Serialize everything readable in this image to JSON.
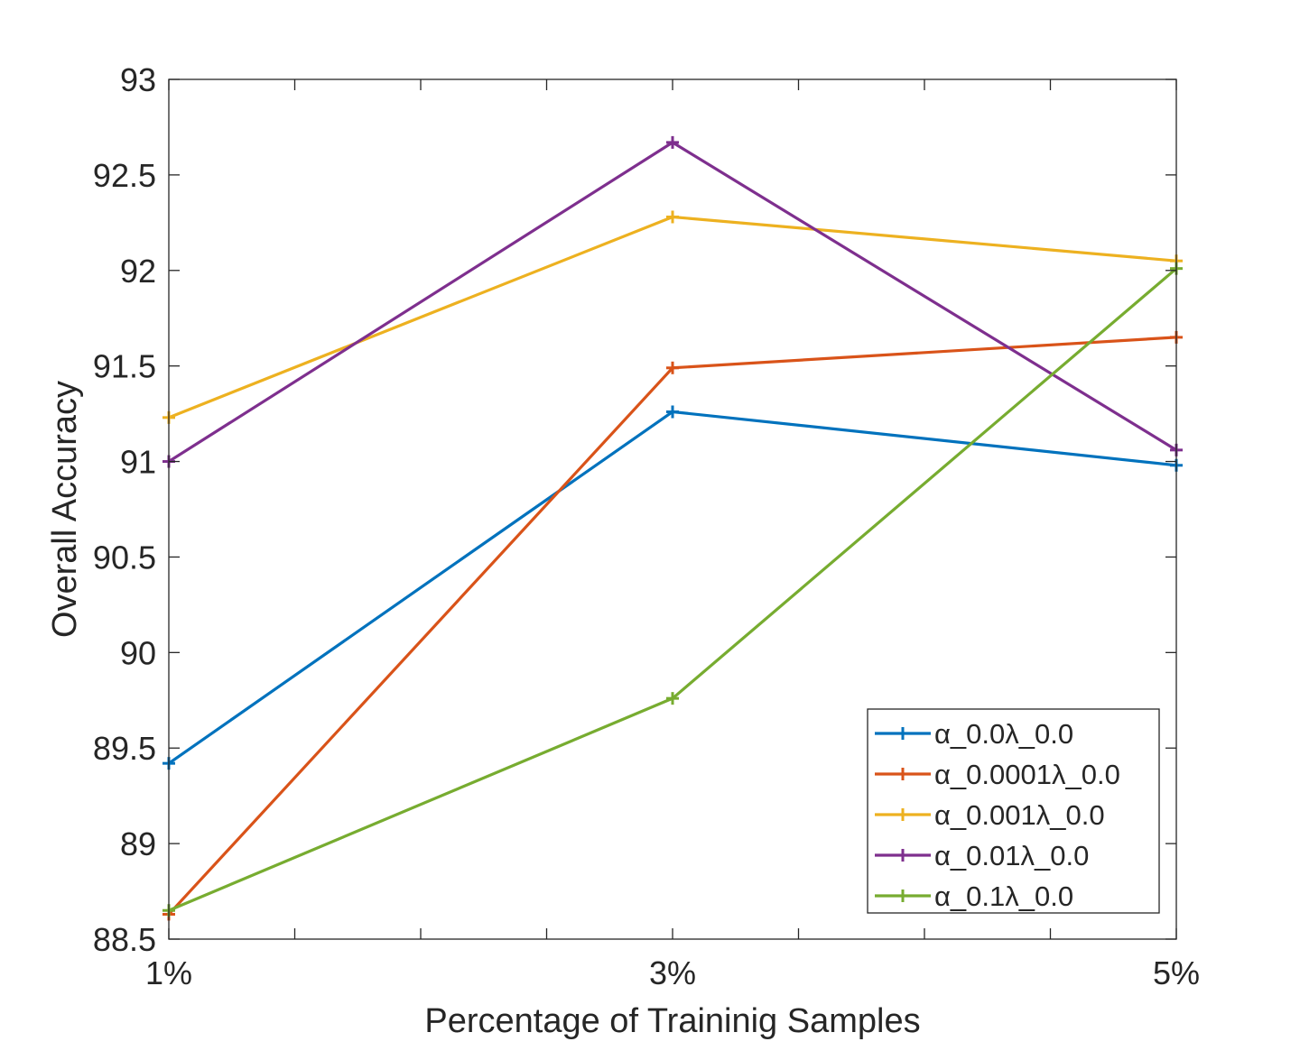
{
  "chart_data": {
    "type": "line",
    "title": "",
    "xlabel": "Percentage of Traininig Samples",
    "ylabel": "Overall Accuracy",
    "x": [
      1,
      3,
      5
    ],
    "xlim": [
      1,
      5
    ],
    "ylim": [
      88.5,
      93
    ],
    "xticks": [
      1,
      1.5,
      2,
      2.5,
      3,
      3.5,
      4,
      4.5,
      5
    ],
    "xtick_labels": [
      {
        "x": 1,
        "label": "1%"
      },
      {
        "x": 3,
        "label": "3%"
      },
      {
        "x": 5,
        "label": "5%"
      }
    ],
    "yticks": [
      88.5,
      89,
      89.5,
      90,
      90.5,
      91,
      91.5,
      92,
      92.5,
      93
    ],
    "ytick_labels": [
      "88.5",
      "89",
      "89.5",
      "90",
      "90.5",
      "91",
      "91.5",
      "92",
      "92.5",
      "93"
    ],
    "grid": false,
    "legend_position": "bottom-right",
    "marker": "+",
    "series": [
      {
        "name": "α_0.0λ_0.0",
        "color": "#0072BD",
        "values": [
          89.42,
          91.26,
          90.98
        ]
      },
      {
        "name": "α_0.0001λ_0.0",
        "color": "#D95319",
        "values": [
          88.63,
          91.49,
          91.65
        ]
      },
      {
        "name": "α_0.001λ_0.0",
        "color": "#EDB120",
        "values": [
          91.23,
          92.28,
          92.05
        ]
      },
      {
        "name": "α_0.01λ_0.0",
        "color": "#7E2F8E",
        "values": [
          91.0,
          92.67,
          91.06
        ]
      },
      {
        "name": "α_0.1λ_0.0",
        "color": "#77AC30",
        "values": [
          88.65,
          89.76,
          92.01
        ]
      }
    ]
  }
}
